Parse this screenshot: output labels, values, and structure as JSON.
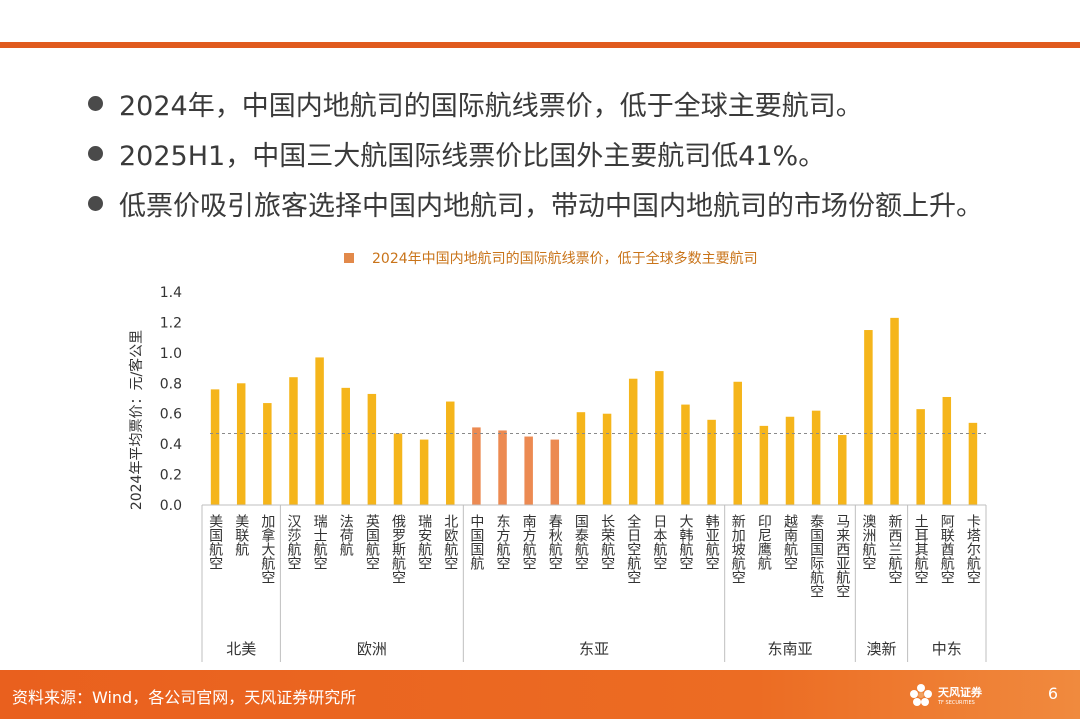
{
  "bullets": [
    "2024年，中国内地航司的国际航线票价，低于全球主要航司。",
    "2025H1，中国三大航国际线票价比国外主要航司低41%。",
    "低票价吸引旅客选择中国内地航司，带动中国内地航司的市场份额上升。"
  ],
  "chart_data": {
    "type": "bar",
    "legend": [
      "2024年中国内地航司的国际航线票价，低于全球多数主要航司"
    ],
    "ylabel": "2024年平均票价：元/客公里",
    "ylim": [
      0,
      1.4
    ],
    "yticks": [
      "0.0",
      "0.2",
      "0.4",
      "0.6",
      "0.8",
      "1.0",
      "1.2",
      "1.4"
    ],
    "reference_line": 0.47,
    "categories": [
      "美国航空",
      "美联航",
      "加拿大航空",
      "汉莎航空",
      "瑞士航空",
      "法荷航",
      "英国航空",
      "俄罗斯航空",
      "瑞安航空",
      "北欧航空",
      "中国国航",
      "东方航空",
      "南方航空",
      "春秋航空",
      "国泰航空",
      "长荣航空",
      "全日空航空",
      "日本航空",
      "大韩航空",
      "韩亚航空",
      "新加坡航空",
      "印尼鹰航",
      "越南航空",
      "泰国国际航空",
      "马来西亚航空",
      "澳洲航空",
      "新西兰航空",
      "土耳其航空",
      "阿联酋航空",
      "卡塔尔航空"
    ],
    "values": [
      0.76,
      0.8,
      0.67,
      0.84,
      0.97,
      0.77,
      0.73,
      0.47,
      0.43,
      0.68,
      0.51,
      0.49,
      0.45,
      0.43,
      0.61,
      0.6,
      0.83,
      0.88,
      0.66,
      0.56,
      0.81,
      0.52,
      0.58,
      0.62,
      0.46,
      1.15,
      1.23,
      0.63,
      0.71,
      0.54
    ],
    "highlight": [
      false,
      false,
      false,
      false,
      false,
      false,
      false,
      false,
      false,
      false,
      true,
      true,
      true,
      true,
      false,
      false,
      false,
      false,
      false,
      false,
      false,
      false,
      false,
      false,
      false,
      false,
      false,
      false,
      false,
      false
    ],
    "groups": [
      {
        "name": "北美",
        "count": 3
      },
      {
        "name": "欧洲",
        "count": 7
      },
      {
        "name": "东亚",
        "count": 10
      },
      {
        "name": "东南亚",
        "count": 5
      },
      {
        "name": "澳新",
        "count": 2
      },
      {
        "name": "中东",
        "count": 3
      }
    ],
    "colors": {
      "bar": "#f5b51b",
      "highlight": "#ec8a52",
      "reference": "#8a8a8a",
      "axis": "#bfbfbf",
      "text": "#333333"
    }
  },
  "footer": {
    "source": "资料来源：Wind，各公司官网，天风证券研究所",
    "logo_cn": "天风证券",
    "logo_en": "TF SECURITIES",
    "page": "6"
  }
}
